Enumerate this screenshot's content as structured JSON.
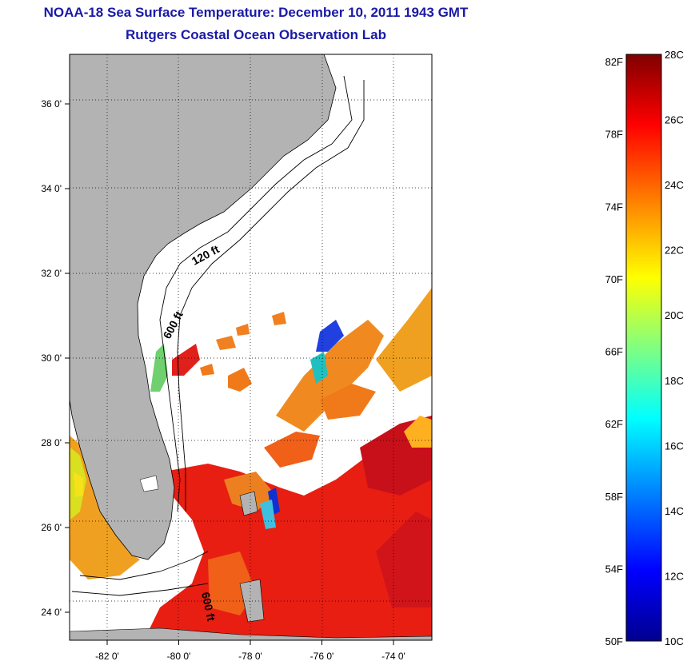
{
  "title_line1": "NOAA-18 Sea Surface Temperature:  December 10, 2011 1943 GMT",
  "title_line2": "Rutgers Coastal Ocean Observation Lab",
  "map": {
    "lat_ticks": [
      {
        "value": 36,
        "label": "36 0'"
      },
      {
        "value": 34,
        "label": "34 0'"
      },
      {
        "value": 32,
        "label": "32 0'"
      },
      {
        "value": 30,
        "label": "30 0'"
      },
      {
        "value": 28,
        "label": "28 0'"
      },
      {
        "value": 26,
        "label": "26 0'"
      },
      {
        "value": 24,
        "label": "24 0'"
      }
    ],
    "lon_ticks": [
      {
        "value": -82,
        "label": "-82 0'"
      },
      {
        "value": -80,
        "label": "-80 0'"
      },
      {
        "value": -78,
        "label": "-78 0'"
      },
      {
        "value": -76,
        "label": "-76 0'"
      },
      {
        "value": -74,
        "label": "-74 0'"
      }
    ],
    "contour_labels": [
      "120 ft",
      "600 ft",
      "600 ft"
    ],
    "land_color": "#b3b3b3",
    "grid": "dotted"
  },
  "colorbar": {
    "celsius_labels": [
      "28C",
      "26C",
      "24C",
      "22C",
      "20C",
      "18C",
      "16C",
      "14C",
      "12C",
      "10C"
    ],
    "fahrenheit_labels": [
      "82F",
      "78F",
      "74F",
      "70F",
      "66F",
      "62F",
      "58F",
      "54F",
      "50F"
    ],
    "celsius_range": [
      10,
      28
    ],
    "colors": [
      "#00008f",
      "#0000ff",
      "#0080ff",
      "#00ffff",
      "#80ff80",
      "#ffff00",
      "#ff8000",
      "#ff0000",
      "#800000"
    ]
  }
}
